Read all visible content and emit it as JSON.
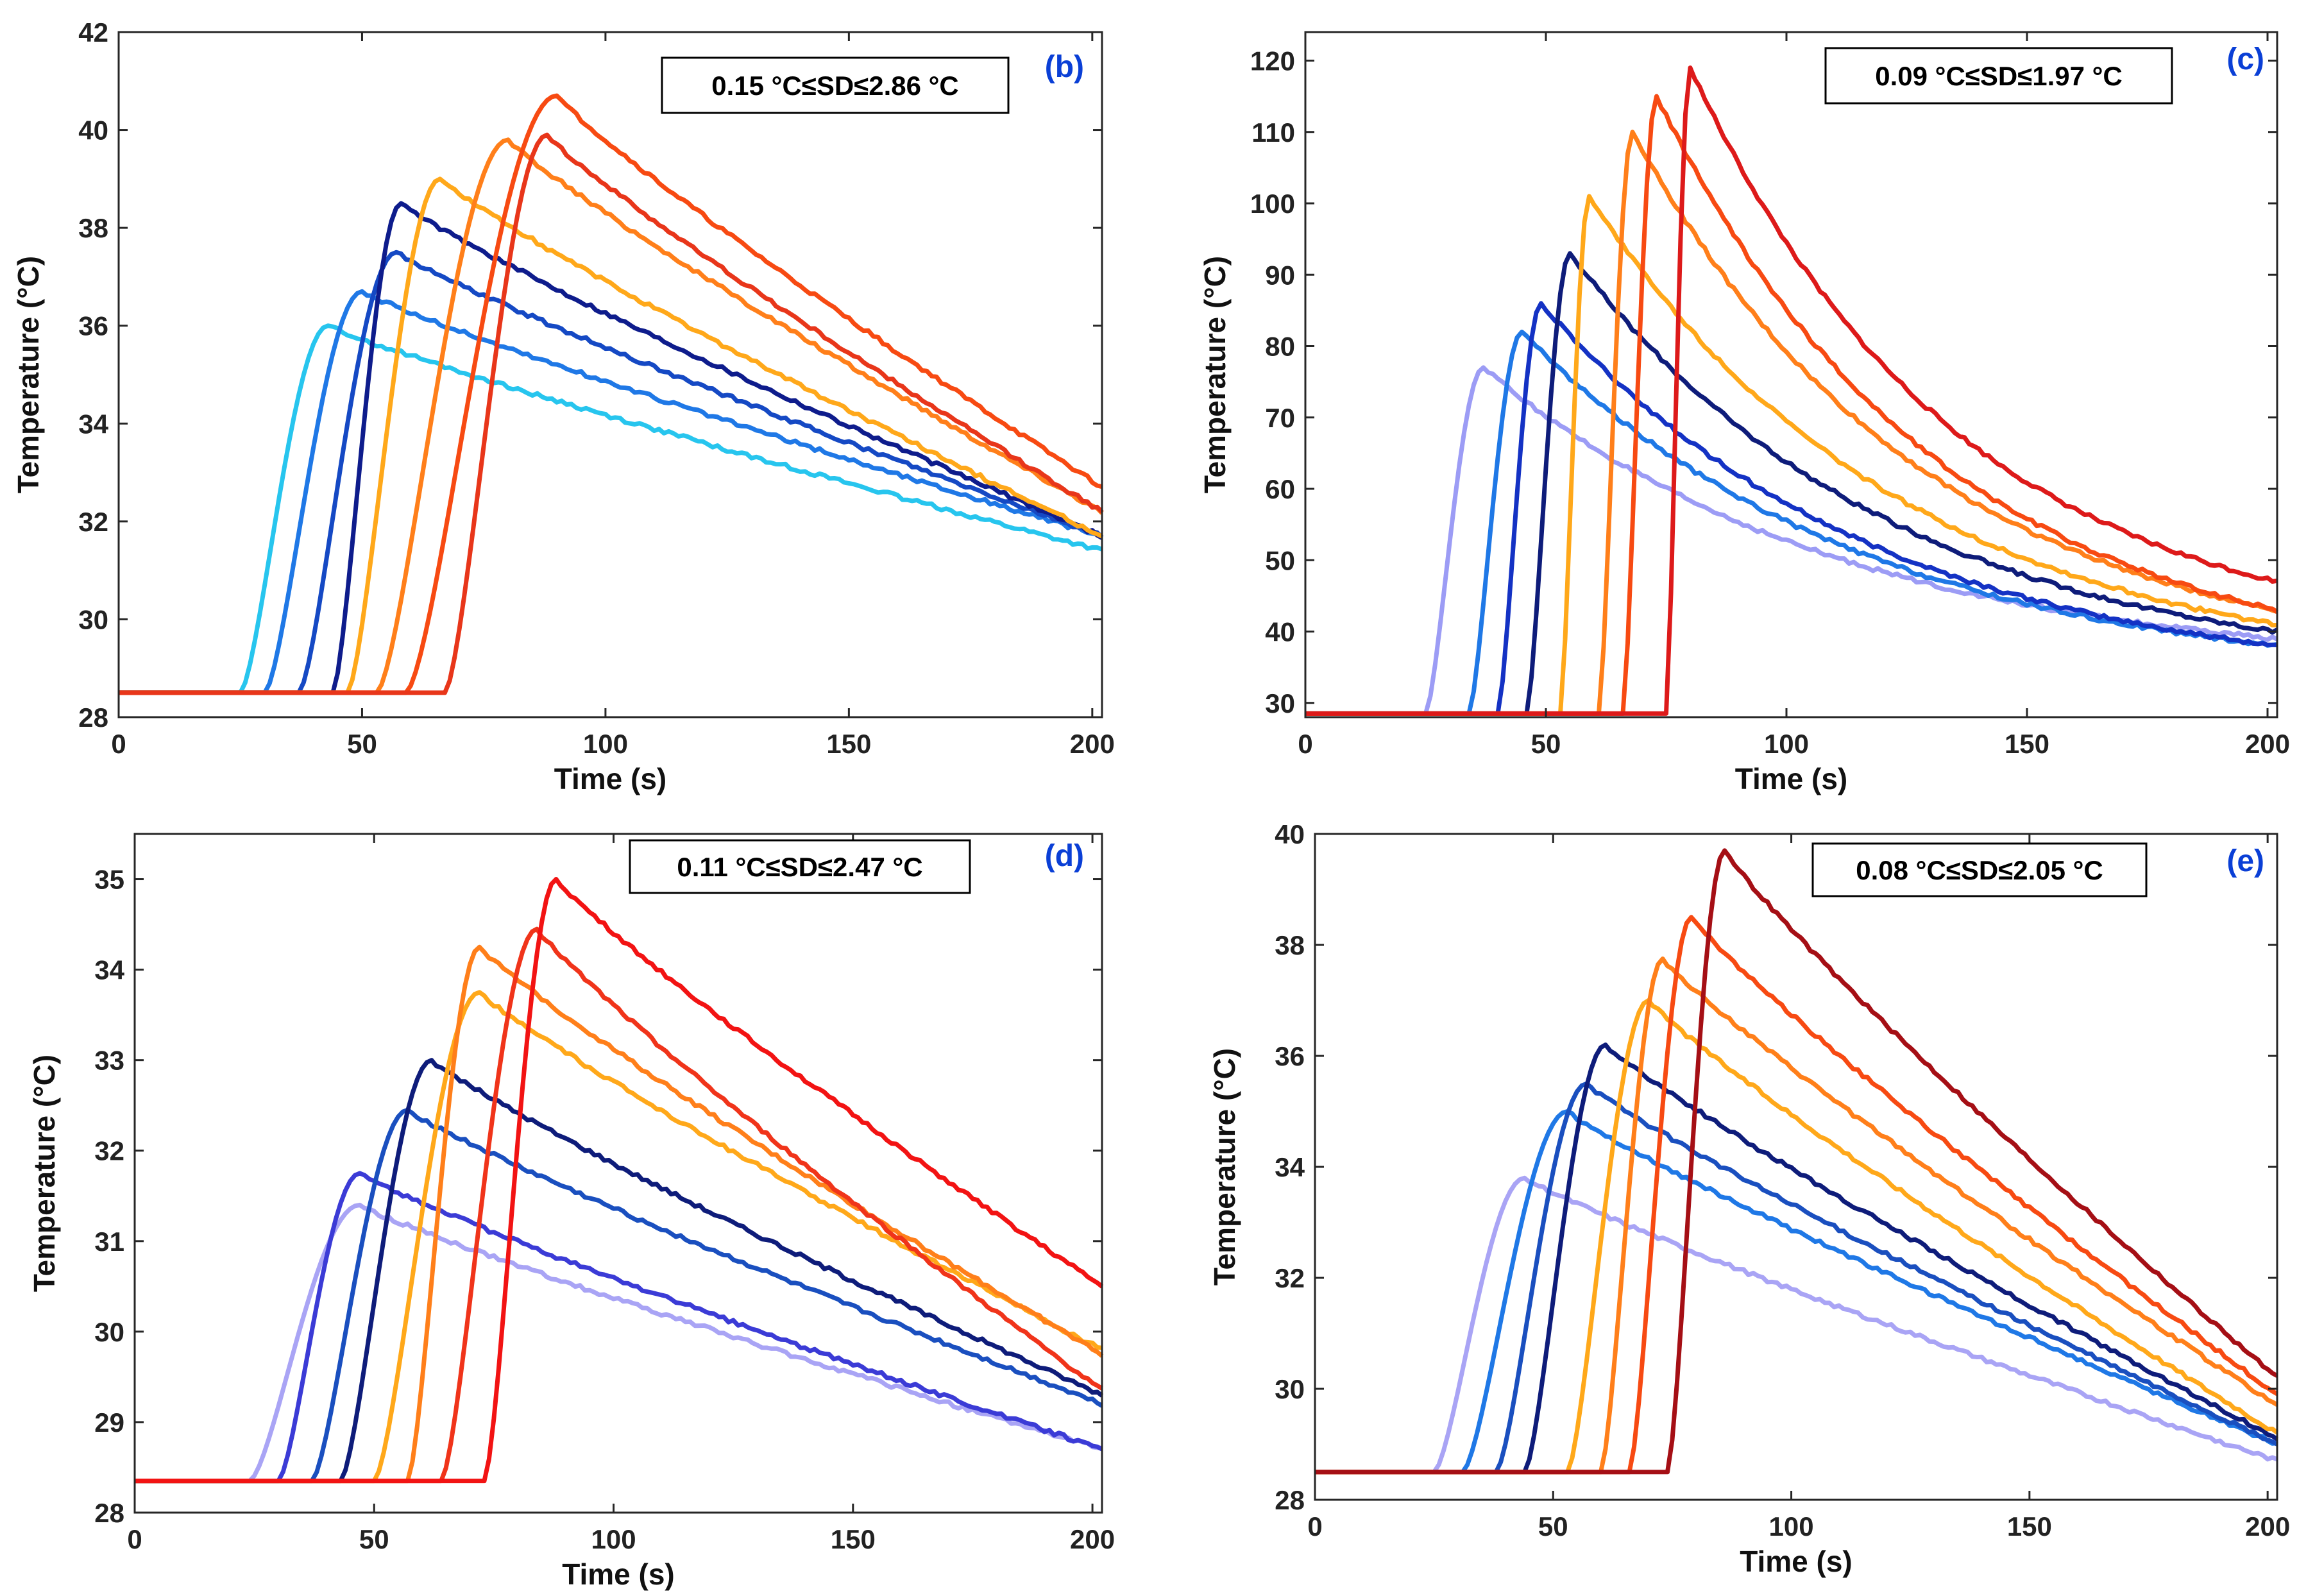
{
  "chart_data": [
    {
      "type": "line",
      "panel_label": "(b)",
      "annotation": "0.15 °C≤SD≤2.86 °C",
      "xlabel": "Time (s)",
      "ylabel": "Temperature (°C)",
      "xlim": [
        0,
        202
      ],
      "ylim": [
        28,
        42
      ],
      "xticks": [
        0,
        50,
        100,
        150,
        200
      ],
      "yticks": [
        28,
        30,
        32,
        34,
        36,
        38,
        40,
        42
      ],
      "baseline": 28.5,
      "series": [
        {
          "name": "s1",
          "color": "#27c5ee",
          "onset": 25,
          "rise_end": 43,
          "peak": 36.0,
          "end": 31.4,
          "decay": "linear"
        },
        {
          "name": "s2",
          "color": "#1f78e6",
          "onset": 30,
          "rise_end": 50,
          "peak": 36.7,
          "end": 31.7,
          "decay": "linear"
        },
        {
          "name": "s3",
          "color": "#1549c4",
          "onset": 37,
          "rise_end": 57,
          "peak": 37.5,
          "end": 31.7,
          "decay": "linear"
        },
        {
          "name": "s4",
          "color": "#0e1c8c",
          "onset": 44,
          "rise_end": 58,
          "peak": 38.5,
          "end": 31.7,
          "decay": "linear"
        },
        {
          "name": "s5",
          "color": "#ffa81a",
          "onset": 47,
          "rise_end": 66,
          "peak": 39.0,
          "end": 31.7,
          "decay": "linear"
        },
        {
          "name": "s6",
          "color": "#ff7f1a",
          "onset": 53,
          "rise_end": 80,
          "peak": 39.8,
          "end": 32.2,
          "decay": "linear"
        },
        {
          "name": "s7",
          "color": "#f74a12",
          "onset": 59,
          "rise_end": 90,
          "peak": 40.7,
          "end": 32.7,
          "decay": "linear"
        },
        {
          "name": "s8",
          "color": "#e8361a",
          "onset": 67,
          "rise_end": 88,
          "peak": 39.9,
          "end": 32.2,
          "decay": "linear"
        }
      ]
    },
    {
      "type": "line",
      "panel_label": "(c)",
      "annotation": "0.09 °C≤SD≤1.97 °C",
      "xlabel": "Time (s)",
      "ylabel": "Temperature (°C)",
      "xlim": [
        0,
        202
      ],
      "ylim": [
        28,
        124
      ],
      "xticks": [
        0,
        50,
        100,
        150,
        200
      ],
      "yticks": [
        30,
        40,
        50,
        60,
        70,
        80,
        90,
        100,
        110,
        120
      ],
      "baseline": 28.5,
      "series": [
        {
          "name": "s1",
          "color": "#9c9cf5",
          "onset": 25,
          "rise_end": 37,
          "peak": 77,
          "end": 39,
          "decay": "exp"
        },
        {
          "name": "s2",
          "color": "#1f78e6",
          "onset": 34,
          "rise_end": 45,
          "peak": 82,
          "end": 38,
          "decay": "exp"
        },
        {
          "name": "s3",
          "color": "#1432c4",
          "onset": 40,
          "rise_end": 49,
          "peak": 86,
          "end": 38,
          "decay": "exp"
        },
        {
          "name": "s4",
          "color": "#0e1c7a",
          "onset": 46,
          "rise_end": 55,
          "peak": 93,
          "end": 40,
          "decay": "exp"
        },
        {
          "name": "s5",
          "color": "#ffa81a",
          "onset": 53,
          "rise_end": 59,
          "peak": 101,
          "end": 41,
          "decay": "exp"
        },
        {
          "name": "s6",
          "color": "#ff7f1a",
          "onset": 61,
          "rise_end": 68,
          "peak": 110,
          "end": 43,
          "decay": "exp"
        },
        {
          "name": "s7",
          "color": "#f74a12",
          "onset": 66,
          "rise_end": 73,
          "peak": 115,
          "end": 43,
          "decay": "exp"
        },
        {
          "name": "s8",
          "color": "#dd1a1a",
          "onset": 75,
          "rise_end": 80,
          "peak": 119,
          "end": 47,
          "decay": "exp"
        }
      ]
    },
    {
      "type": "line",
      "panel_label": "(d)",
      "annotation": "0.11 °C≤SD≤2.47 °C",
      "xlabel": "Time (s)",
      "ylabel": "Temperature (°C)",
      "xlim": [
        0,
        202
      ],
      "ylim": [
        28,
        35.5
      ],
      "xticks": [
        0,
        50,
        100,
        150,
        200
      ],
      "yticks": [
        28,
        29,
        30,
        31,
        32,
        33,
        34,
        35
      ],
      "baseline": 28.35,
      "series": [
        {
          "name": "s1",
          "color": "#a9a4f5",
          "onset": 24,
          "rise_end": 47,
          "peak": 31.4,
          "end": 28.7,
          "decay": "linear"
        },
        {
          "name": "s2",
          "color": "#3b3bd6",
          "onset": 30,
          "rise_end": 47,
          "peak": 31.75,
          "end": 28.7,
          "decay": "linear"
        },
        {
          "name": "s3",
          "color": "#1a4fbf",
          "onset": 37,
          "rise_end": 57,
          "peak": 32.45,
          "end": 29.2,
          "decay": "linear"
        },
        {
          "name": "s4",
          "color": "#0e1c7a",
          "onset": 43,
          "rise_end": 62,
          "peak": 33.0,
          "end": 29.3,
          "decay": "linear"
        },
        {
          "name": "s5",
          "color": "#ffa81a",
          "onset": 50,
          "rise_end": 72,
          "peak": 33.75,
          "end": 29.8,
          "decay": "linear"
        },
        {
          "name": "s6",
          "color": "#ff7f1a",
          "onset": 57,
          "rise_end": 72,
          "peak": 34.25,
          "end": 29.75,
          "decay": "linear"
        },
        {
          "name": "s7",
          "color": "#f0341a",
          "onset": 64,
          "rise_end": 84,
          "peak": 34.45,
          "end": 29.35,
          "decay": "linear"
        },
        {
          "name": "s8",
          "color": "#f21313",
          "onset": 73,
          "rise_end": 88,
          "peak": 35.0,
          "end": 30.5,
          "decay": "linear"
        }
      ]
    },
    {
      "type": "line",
      "panel_label": "(e)",
      "annotation": "0.08 °C≤SD≤2.05 °C",
      "xlabel": "Time (s)",
      "ylabel": "Temperature (°C)",
      "xlim": [
        0,
        202
      ],
      "ylim": [
        28,
        40
      ],
      "xticks": [
        0,
        50,
        100,
        150,
        200
      ],
      "yticks": [
        28,
        30,
        32,
        34,
        36,
        38,
        40
      ],
      "baseline": 28.5,
      "series": [
        {
          "name": "s1",
          "color": "#a9a4f5",
          "onset": 25,
          "rise_end": 44,
          "peak": 33.8,
          "end": 28.7,
          "decay": "linear"
        },
        {
          "name": "s2",
          "color": "#1f78e6",
          "onset": 31,
          "rise_end": 53,
          "peak": 35.0,
          "end": 29.0,
          "decay": "linear"
        },
        {
          "name": "s3",
          "color": "#1a4fbf",
          "onset": 38,
          "rise_end": 57,
          "peak": 35.5,
          "end": 29.0,
          "decay": "linear"
        },
        {
          "name": "s4",
          "color": "#0e1c7a",
          "onset": 44,
          "rise_end": 61,
          "peak": 36.2,
          "end": 29.1,
          "decay": "linear"
        },
        {
          "name": "s5",
          "color": "#ffa81a",
          "onset": 53,
          "rise_end": 70,
          "peak": 37.0,
          "end": 29.2,
          "decay": "linear"
        },
        {
          "name": "s6",
          "color": "#ff7f1a",
          "onset": 60,
          "rise_end": 73,
          "peak": 37.75,
          "end": 29.7,
          "decay": "linear"
        },
        {
          "name": "s7",
          "color": "#f74a12",
          "onset": 66,
          "rise_end": 79,
          "peak": 38.5,
          "end": 29.9,
          "decay": "linear"
        },
        {
          "name": "s8",
          "color": "#a50f15",
          "onset": 74,
          "rise_end": 86,
          "peak": 39.7,
          "end": 30.2,
          "decay": "linear"
        }
      ]
    }
  ]
}
